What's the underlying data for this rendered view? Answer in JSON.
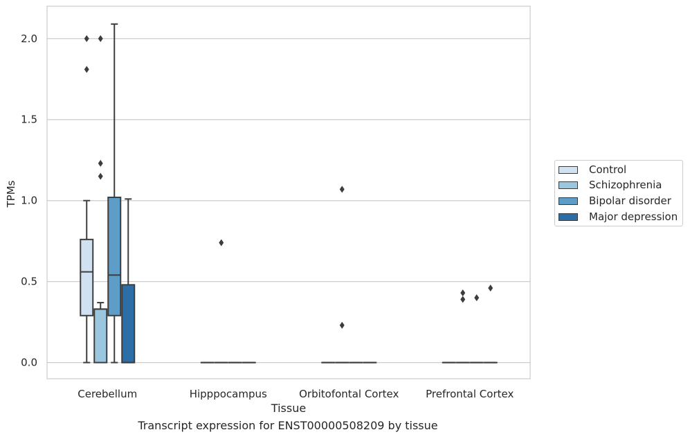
{
  "chart_data": {
    "type": "box",
    "title": "",
    "caption": "Transcript expression for ENST00000508209 by tissue",
    "xlabel": "Tissue",
    "ylabel": "TPMs",
    "ylim": [
      -0.1,
      2.2
    ],
    "yticks": [
      "0.0",
      "0.5",
      "1.0",
      "1.5",
      "2.0"
    ],
    "grid": true,
    "legend_position": "right",
    "categories": [
      "Cerebellum",
      "Hipppocampus",
      "Orbitofontal Cortex",
      "Prefrontal Cortex"
    ],
    "series": [
      {
        "name": "Control",
        "color": "#d0e1f2",
        "boxes": [
          {
            "min": 0.0,
            "q1": 0.29,
            "median": 0.56,
            "q3": 0.76,
            "max": 1.0,
            "outliers": [
              2.0,
              1.81
            ]
          },
          {
            "min": 0.0,
            "q1": 0.0,
            "median": 0.0,
            "q3": 0.0,
            "max": 0.0,
            "outliers": []
          },
          {
            "min": 0.0,
            "q1": 0.0,
            "median": 0.0,
            "q3": 0.0,
            "max": 0.0,
            "outliers": []
          },
          {
            "min": 0.0,
            "q1": 0.0,
            "median": 0.0,
            "q3": 0.0,
            "max": 0.0,
            "outliers": []
          }
        ]
      },
      {
        "name": "Schizophrenia",
        "color": "#9ac6df",
        "boxes": [
          {
            "min": 0.0,
            "q1": 0.0,
            "median": 0.33,
            "q3": 0.33,
            "max": 0.37,
            "outliers": [
              2.0,
              1.23,
              1.15
            ]
          },
          {
            "min": 0.0,
            "q1": 0.0,
            "median": 0.0,
            "q3": 0.0,
            "max": 0.0,
            "outliers": [
              0.74
            ]
          },
          {
            "min": 0.0,
            "q1": 0.0,
            "median": 0.0,
            "q3": 0.0,
            "max": 0.0,
            "outliers": [
              1.07,
              0.23
            ]
          },
          {
            "min": 0.0,
            "q1": 0.0,
            "median": 0.0,
            "q3": 0.0,
            "max": 0.0,
            "outliers": [
              0.43,
              0.39
            ]
          }
        ]
      },
      {
        "name": "Bipolar disorder",
        "color": "#5e9dc8",
        "boxes": [
          {
            "min": 0.0,
            "q1": 0.29,
            "median": 0.54,
            "q3": 1.02,
            "max": 2.09,
            "outliers": []
          },
          {
            "min": 0.0,
            "q1": 0.0,
            "median": 0.0,
            "q3": 0.0,
            "max": 0.0,
            "outliers": []
          },
          {
            "min": 0.0,
            "q1": 0.0,
            "median": 0.0,
            "q3": 0.0,
            "max": 0.0,
            "outliers": []
          },
          {
            "min": 0.0,
            "q1": 0.0,
            "median": 0.0,
            "q3": 0.0,
            "max": 0.0,
            "outliers": [
              0.4
            ]
          }
        ]
      },
      {
        "name": "Major depression",
        "color": "#2b6ea8",
        "boxes": [
          {
            "min": 0.0,
            "q1": 0.0,
            "median": 0.0,
            "q3": 0.48,
            "max": 1.01,
            "outliers": []
          },
          {
            "min": 0.0,
            "q1": 0.0,
            "median": 0.0,
            "q3": 0.0,
            "max": 0.0,
            "outliers": []
          },
          {
            "min": 0.0,
            "q1": 0.0,
            "median": 0.0,
            "q3": 0.0,
            "max": 0.0,
            "outliers": []
          },
          {
            "min": 0.0,
            "q1": 0.0,
            "median": 0.0,
            "q3": 0.0,
            "max": 0.0,
            "outliers": [
              0.46
            ]
          }
        ]
      }
    ]
  }
}
